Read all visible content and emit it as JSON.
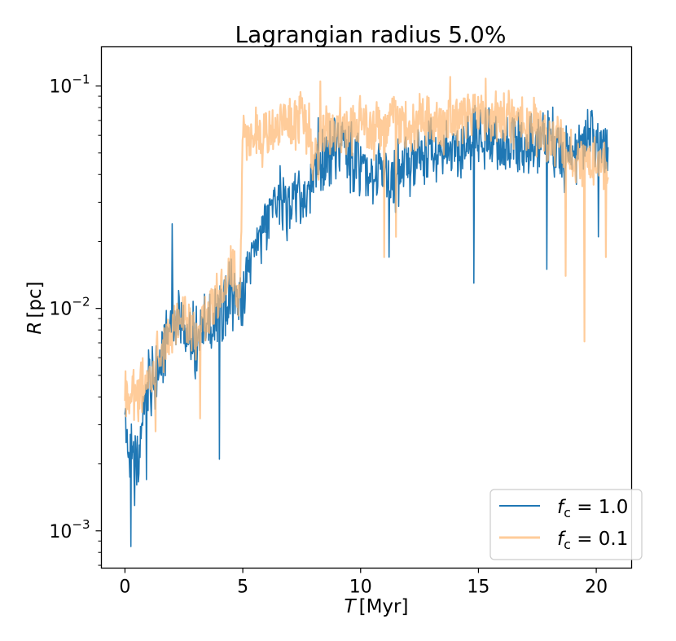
{
  "chart_data": {
    "type": "line",
    "title": "Lagrangian radius 5.0%",
    "xlabel_var": "T",
    "xlabel_unit": "[Myr]",
    "ylabel_var": "R",
    "ylabel_unit": "[pc]",
    "xlim": [
      -1.0,
      21.5
    ],
    "ylim": [
      0.00068,
      0.15
    ],
    "yscale": "log",
    "x_ticks": [
      0,
      5,
      10,
      15,
      20
    ],
    "x_tick_labels": [
      "0",
      "5",
      "10",
      "15",
      "20"
    ],
    "y_ticks": [
      0.001,
      0.01,
      0.1
    ],
    "y_tick_labels": [
      {
        "base": "10",
        "exp": "−3"
      },
      {
        "base": "10",
        "exp": "−2"
      },
      {
        "base": "10",
        "exp": "−1"
      }
    ],
    "legend_position": "lower-right",
    "series": [
      {
        "name": "f_c = 1.0",
        "legend_var": "f",
        "legend_sub": "c",
        "legend_rhs": " = 1.0",
        "color": "#1f77b4",
        "opacity": 1.0,
        "x": [
          0.0,
          0.5,
          1.0,
          1.5,
          2.0,
          2.5,
          3.0,
          3.5,
          4.0,
          4.5,
          5.0,
          5.5,
          6.0,
          6.5,
          7.0,
          7.5,
          8.0,
          8.5,
          9.0,
          9.5,
          10.0,
          10.5,
          11.0,
          11.5,
          12.0,
          12.5,
          13.0,
          13.5,
          14.0,
          14.5,
          15.0,
          15.5,
          16.0,
          16.5,
          17.0,
          17.5,
          18.0,
          18.5,
          19.0,
          19.5,
          20.0,
          20.5
        ],
        "values": [
          0.0028,
          0.0021,
          0.0045,
          0.0055,
          0.009,
          0.008,
          0.007,
          0.0085,
          0.009,
          0.012,
          0.011,
          0.02,
          0.025,
          0.03,
          0.028,
          0.032,
          0.038,
          0.045,
          0.055,
          0.048,
          0.045,
          0.038,
          0.042,
          0.04,
          0.043,
          0.048,
          0.055,
          0.052,
          0.05,
          0.056,
          0.06,
          0.058,
          0.052,
          0.06,
          0.05,
          0.056,
          0.06,
          0.045,
          0.052,
          0.06,
          0.055,
          0.055
        ],
        "noise_amplitude": 0.28,
        "dips": [
          [
            0.25,
            0.00085
          ],
          [
            0.4,
            0.0013
          ],
          [
            0.9,
            0.0017
          ],
          [
            2.0,
            0.024
          ],
          [
            4.0,
            0.0021
          ],
          [
            11.2,
            0.017
          ],
          [
            14.8,
            0.013
          ],
          [
            17.9,
            0.015
          ],
          [
            20.1,
            0.021
          ],
          [
            6.3,
            0.034
          ],
          [
            8.2,
            0.072
          ]
        ]
      },
      {
        "name": "f_c = 0.1",
        "legend_var": "f",
        "legend_sub": "c",
        "legend_rhs": " = 0.1",
        "color": "#ffbb78",
        "opacity": 0.75,
        "x": [
          0.0,
          0.5,
          1.0,
          1.5,
          2.0,
          2.5,
          3.0,
          3.5,
          4.0,
          4.5,
          4.9,
          5.0,
          5.5,
          6.0,
          6.5,
          7.0,
          7.5,
          7.8,
          8.0,
          8.5,
          9.0,
          9.5,
          10.0,
          10.5,
          11.0,
          11.5,
          12.0,
          12.5,
          13.0,
          13.5,
          14.0,
          14.5,
          15.0,
          15.5,
          16.0,
          16.5,
          17.0,
          17.5,
          18.0,
          18.5,
          19.0,
          19.5,
          20.0,
          20.5
        ],
        "values": [
          0.0038,
          0.004,
          0.005,
          0.006,
          0.008,
          0.009,
          0.008,
          0.009,
          0.012,
          0.015,
          0.012,
          0.055,
          0.06,
          0.058,
          0.065,
          0.07,
          0.07,
          0.065,
          0.045,
          0.06,
          0.065,
          0.065,
          0.07,
          0.062,
          0.068,
          0.07,
          0.065,
          0.07,
          0.072,
          0.065,
          0.07,
          0.075,
          0.07,
          0.07,
          0.068,
          0.07,
          0.07,
          0.065,
          0.06,
          0.055,
          0.05,
          0.045,
          0.045,
          0.04
        ],
        "noise_amplitude": 0.22,
        "dips": [
          [
            0.1,
            0.0045
          ],
          [
            1.3,
            0.0028
          ],
          [
            3.2,
            0.0032
          ],
          [
            8.3,
            0.105
          ],
          [
            11.0,
            0.017
          ],
          [
            11.5,
            0.021
          ],
          [
            13.8,
            0.11
          ],
          [
            15.3,
            0.108
          ],
          [
            18.7,
            0.014
          ],
          [
            19.5,
            0.0071
          ],
          [
            20.4,
            0.017
          ]
        ]
      }
    ]
  }
}
